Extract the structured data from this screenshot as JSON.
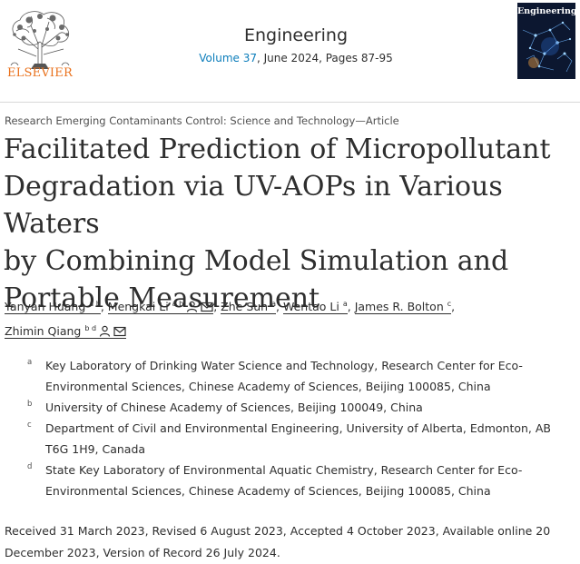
{
  "header": {
    "publisher": "ELSEVIER",
    "journal": "Engineering",
    "volume_link": "Volume 37",
    "issue_rest": ", June 2024, Pages 87-95",
    "cover_title": "Engineering"
  },
  "article": {
    "section": "Research Emerging Contaminants Control: Science and Technology—Article",
    "title_lines": [
      "Facilitated Prediction of Micropollutant",
      "Degradation via UV-AOPs in Various Waters",
      "by Combining Model Simulation and",
      "Portable Measurement"
    ]
  },
  "authors": [
    {
      "name": "Yanyan Huang",
      "sup": "a b",
      "sep": ","
    },
    {
      "name": "Mengkai Li",
      "sup": "a b",
      "sep": ","
    },
    {
      "name": "Zhe Sun",
      "sup": "a",
      "sep": ","
    },
    {
      "name": "Wentao Li",
      "sup": "a",
      "sep": ","
    },
    {
      "name": "James R. Bolton",
      "sup": "c",
      "sep": ","
    },
    {
      "name": "Zhimin Qiang",
      "sup": "b d",
      "sep": ""
    }
  ],
  "affiliations": [
    {
      "label": "a",
      "text": "Key Laboratory of Drinking Water Science and Technology, Research Center for Eco-Environmental Sciences, Chinese Academy of Sciences, Beijing 100085, China"
    },
    {
      "label": "b",
      "text": "University of Chinese Academy of Sciences, Beijing 100049, China"
    },
    {
      "label": "c",
      "text": "Department of Civil and Environmental Engineering, University of Alberta, Edmonton, AB T6G 1H9, Canada"
    },
    {
      "label": "d",
      "text": "State Key Laboratory of Environmental Aquatic Chemistry, Research Center for Eco-Environmental Sciences, Chinese Academy of Sciences, Beijing 100085, China"
    }
  ],
  "history": "Received 31 March 2023, Revised 6 August 2023, Accepted 4 October 2023, Available online 20 December 2023, Version of Record 26 July 2024.",
  "icons": {
    "person": "person-icon",
    "mail": "envelope-icon"
  }
}
